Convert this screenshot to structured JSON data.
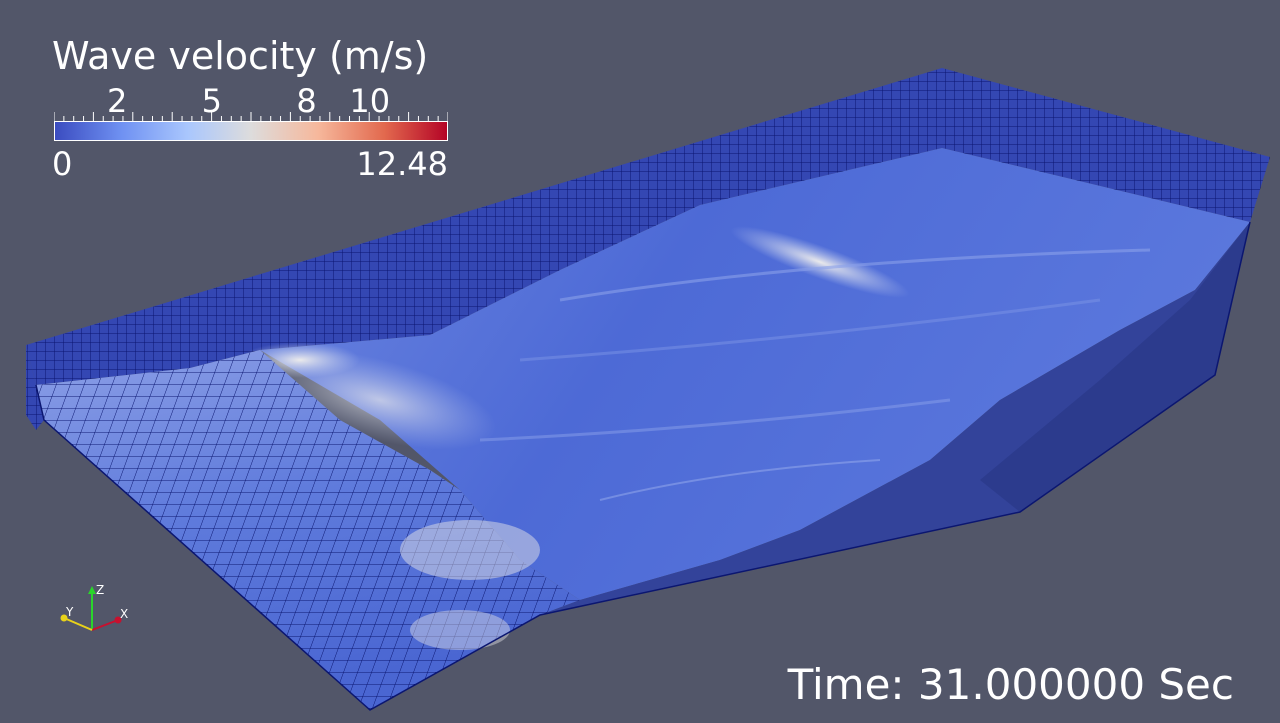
{
  "legend": {
    "title": "Wave velocity (m/s)",
    "min_label": "0",
    "max_label": "12.48",
    "min_value": 0,
    "max_value": 12.48,
    "ticks": [
      {
        "value": 2,
        "label": "2"
      },
      {
        "value": 5,
        "label": "5"
      },
      {
        "value": 8,
        "label": "8"
      },
      {
        "value": 10,
        "label": "10"
      }
    ],
    "colors": [
      "#3b4cc0",
      "#6f91f2",
      "#aac7fd",
      "#dddcdc",
      "#f6b89c",
      "#e2694e",
      "#b40426"
    ]
  },
  "time": {
    "label": "Time: 31.000000 Sec"
  },
  "axes": {
    "x_label": "X",
    "y_label": "Y",
    "z_label": "Z",
    "x_color": "#c8102e",
    "y_color": "#e8d21a",
    "z_color": "#2ad52a"
  },
  "scene": {
    "background": "#525669",
    "mesh_color": "#2a3aa8",
    "grid_line_color": "#0d1a6e",
    "slope_color": "#2e3d8f"
  }
}
